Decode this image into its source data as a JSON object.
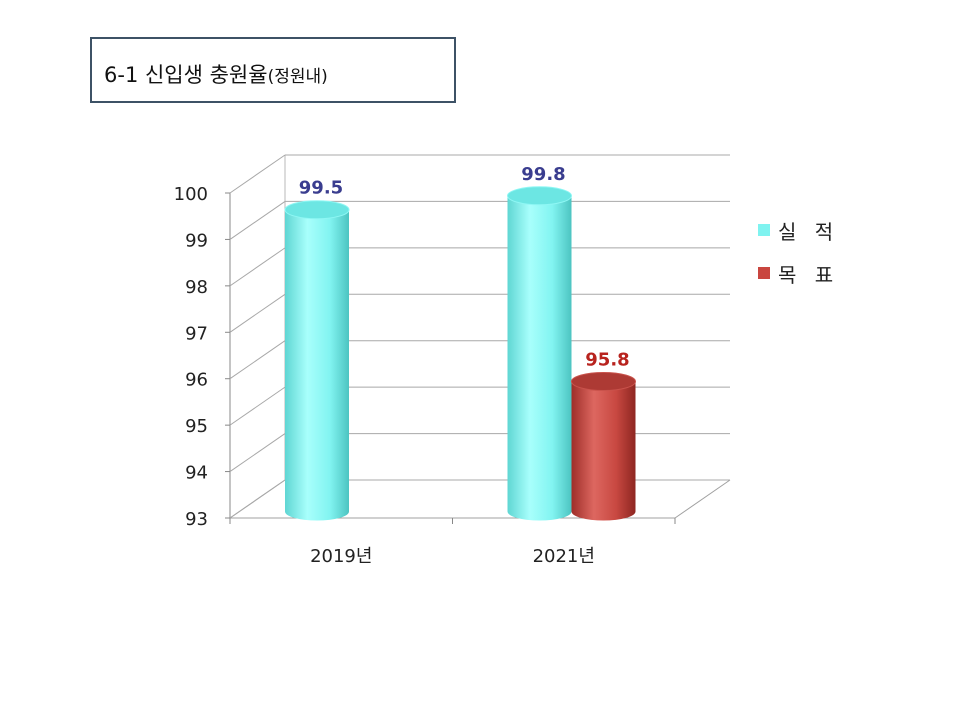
{
  "title": {
    "main": "6-1 신입생 충원율",
    "paren": "(정원내)"
  },
  "chart_data": {
    "type": "bar",
    "categories": [
      "2019년",
      "2021년"
    ],
    "series": [
      {
        "name": "실 적",
        "values": [
          99.5,
          99.8
        ],
        "color": "#7ff3f0",
        "label_color": "#3a3d8f"
      },
      {
        "name": "목 표",
        "values": [
          null,
          95.8
        ],
        "color": "#c9463f",
        "label_color": "#b8231e"
      }
    ],
    "data_labels": [
      [
        "99.5",
        "99.8"
      ],
      [
        "",
        "95.8"
      ]
    ],
    "yticks": [
      "93",
      "94",
      "95",
      "96",
      "97",
      "98",
      "99",
      "100"
    ],
    "ylim": [
      93,
      100
    ],
    "grid": true,
    "three_d": true,
    "legend_position": "right"
  }
}
